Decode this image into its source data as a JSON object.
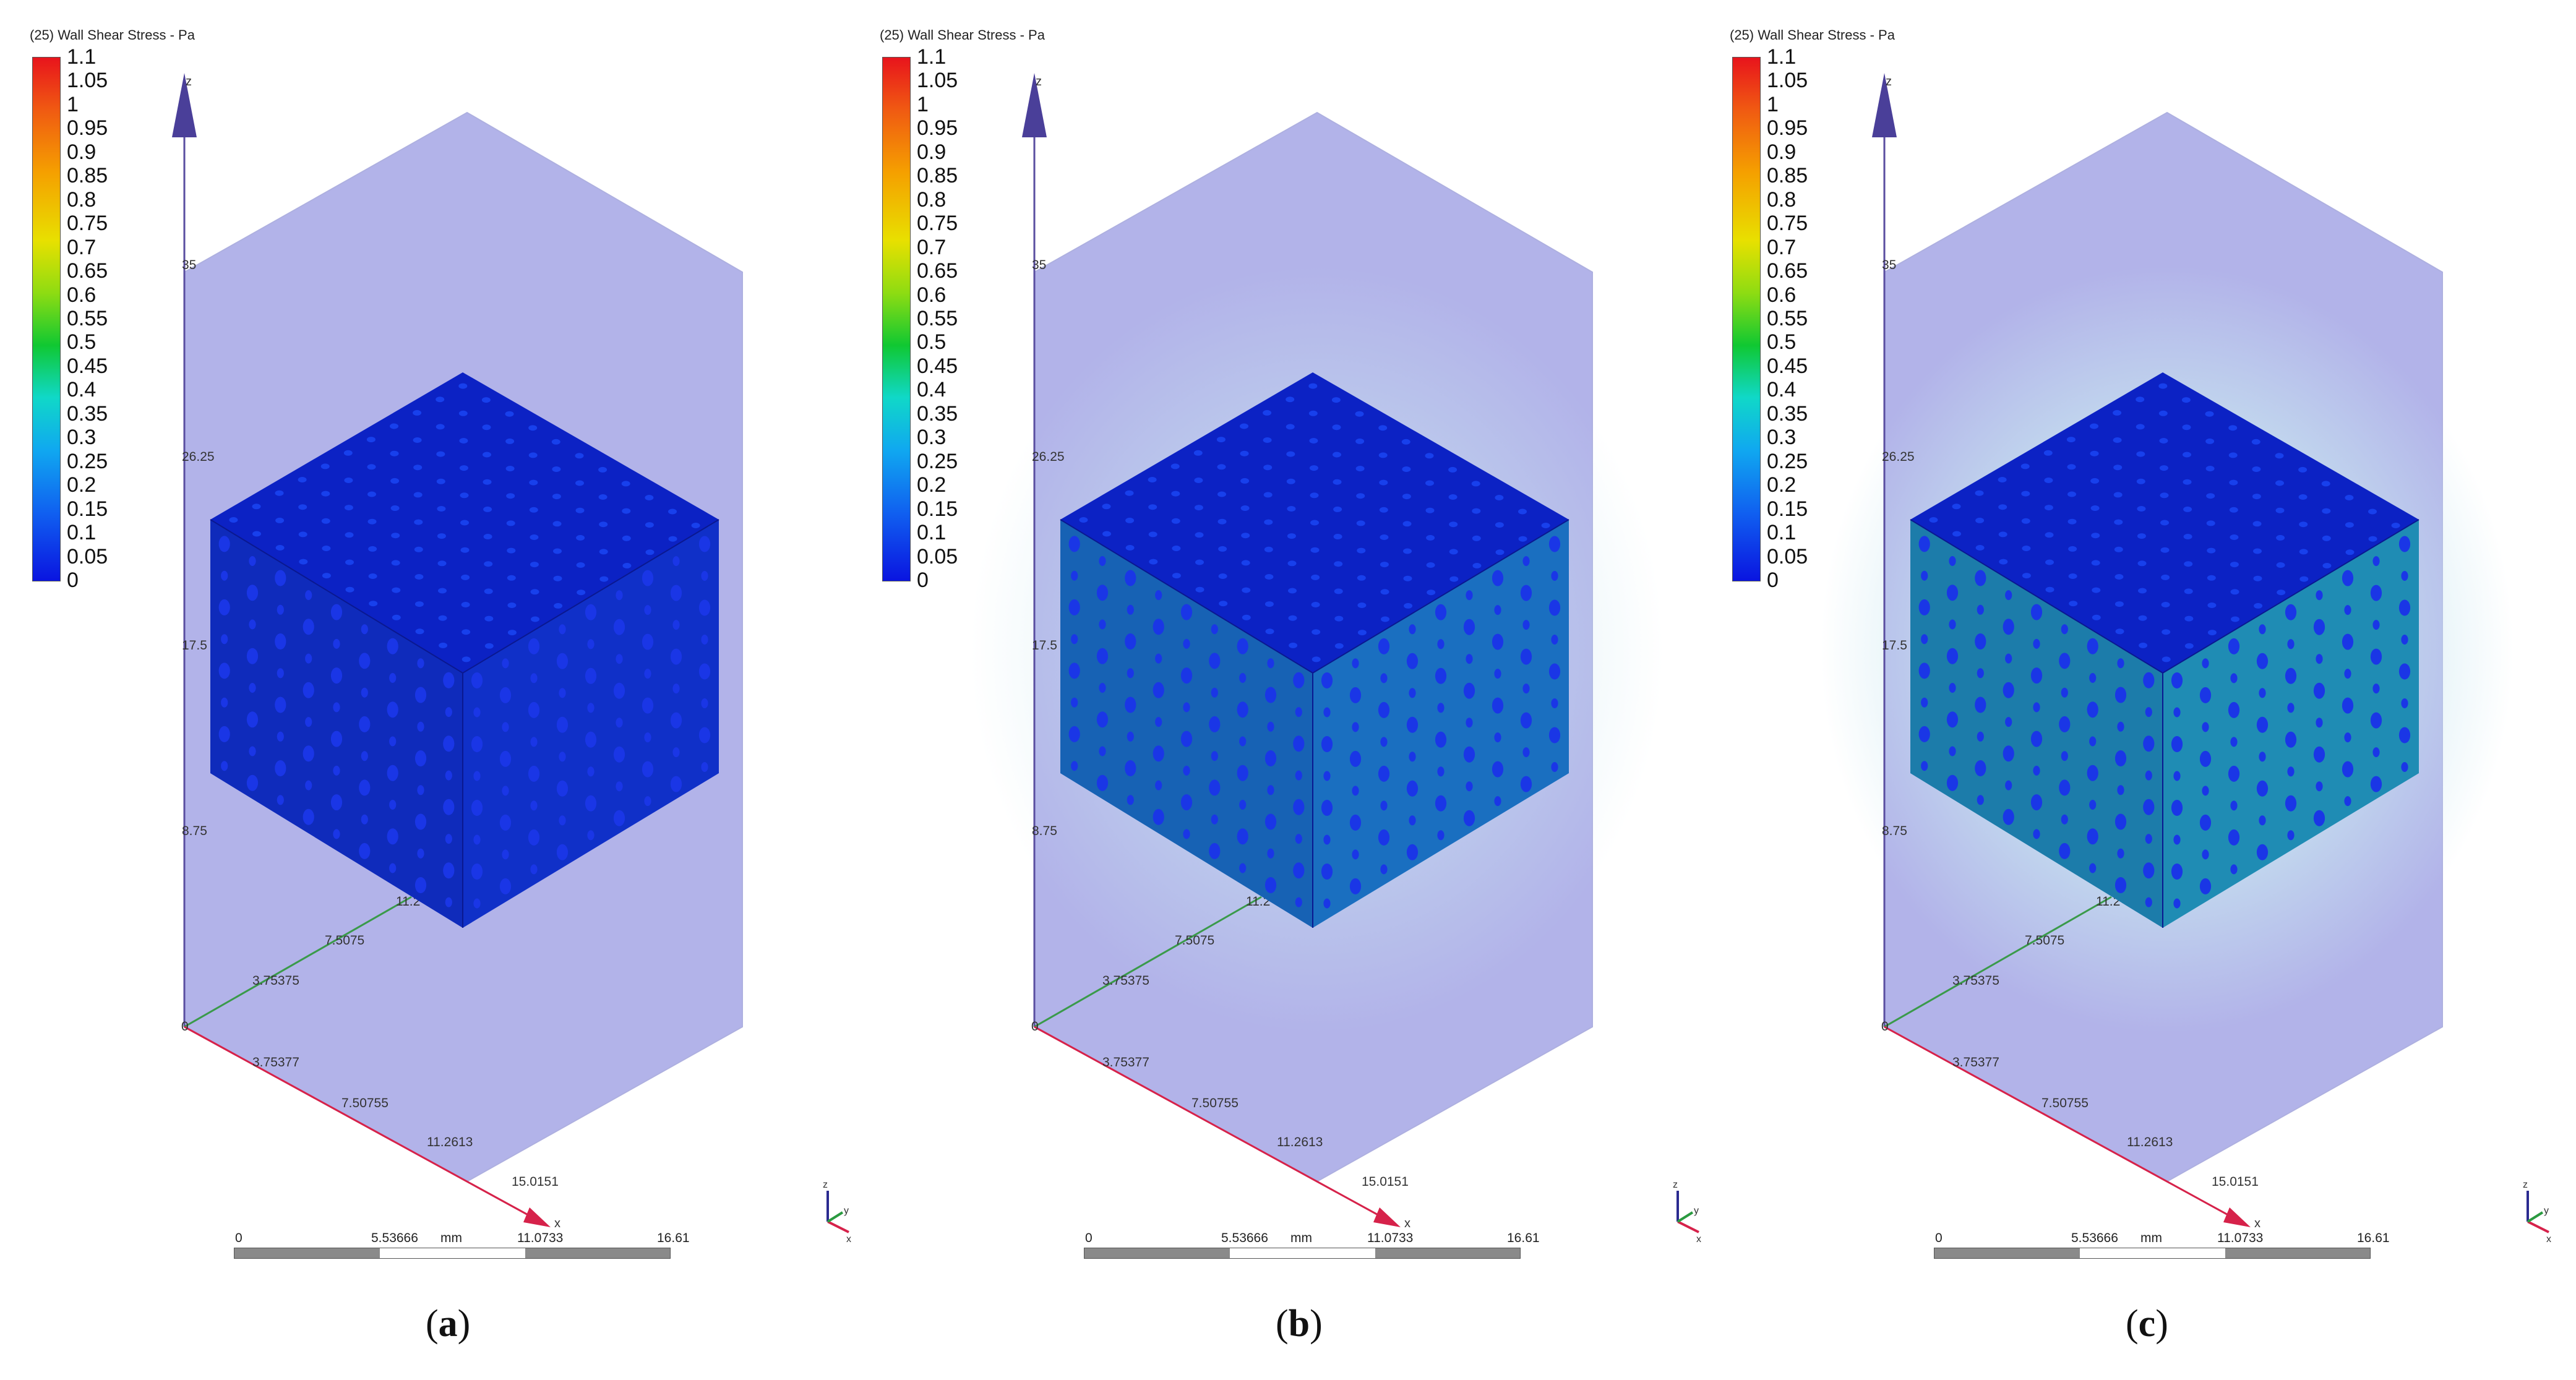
{
  "legend": {
    "title": "(25) Wall Shear Stress - Pa",
    "ticks": [
      "1.1",
      "1.05",
      "1",
      "0.95",
      "0.9",
      "0.85",
      "0.8",
      "0.75",
      "0.7",
      "0.65",
      "0.6",
      "0.55",
      "0.5",
      "0.45",
      "0.4",
      "0.35",
      "0.3",
      "0.25",
      "0.2",
      "0.15",
      "0.1",
      "0.05",
      "0"
    ]
  },
  "axes": {
    "z_label": "z",
    "x_label": "x",
    "z_ticks": [
      "35",
      "26.25",
      "17.5",
      "8.75"
    ],
    "y_ticks": [
      "11.2",
      "7.5075",
      "3.75375"
    ],
    "x_ticks": [
      "3.75377",
      "7.50755",
      "11.2613",
      "15.0151"
    ],
    "origin": "0"
  },
  "triad": {
    "x": "x",
    "y": "y",
    "z": "z"
  },
  "scale": {
    "labels": [
      "0",
      "5.53666",
      "mm",
      "11.0733",
      "16.61"
    ]
  },
  "panels": [
    {
      "id": "a",
      "caption_open": "(",
      "caption_letter": "a",
      "caption_close": ")",
      "face_color": "#1030c8"
    },
    {
      "id": "b",
      "caption_open": "(",
      "caption_letter": "b",
      "caption_close": ")",
      "face_color": "#1a6fc0"
    },
    {
      "id": "c",
      "caption_open": "(",
      "caption_letter": "c",
      "caption_close": ")",
      "face_color": "#1f8cb4"
    }
  ]
}
